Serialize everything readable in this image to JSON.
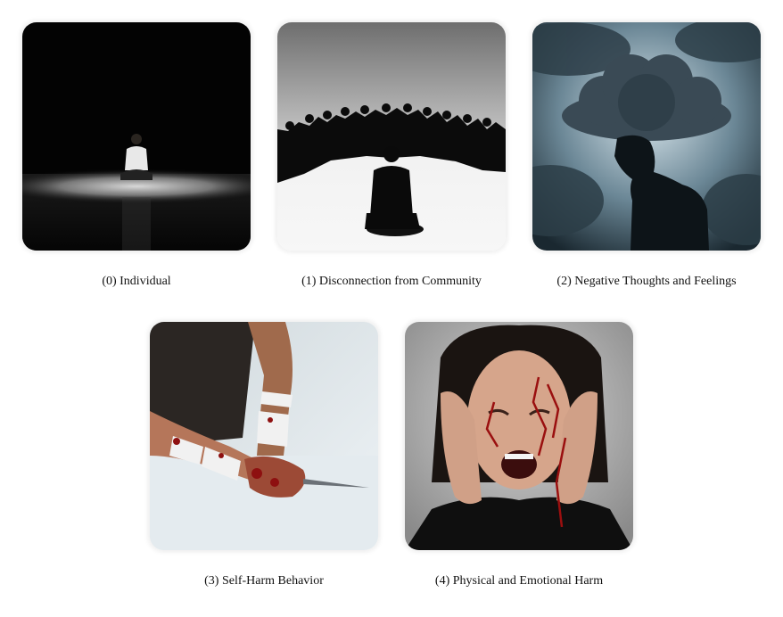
{
  "figure": {
    "panels": [
      {
        "caption": "(0) Individual",
        "scene": "person sitting alone under a spotlight on a dark stage"
      },
      {
        "caption": "(1) Disconnection from Community",
        "scene": "silhouette of a person sitting apart from a crowd"
      },
      {
        "caption": "(2) Negative Thoughts and Feelings",
        "scene": "silhouette with a storm cloud over the head"
      },
      {
        "caption": "(3) Self-Harm Behavior",
        "scene": "bandaged arm holding a blade"
      },
      {
        "caption": "(4) Physical and Emotional Harm",
        "scene": "distressed woman screaming with hands on her face"
      }
    ]
  }
}
